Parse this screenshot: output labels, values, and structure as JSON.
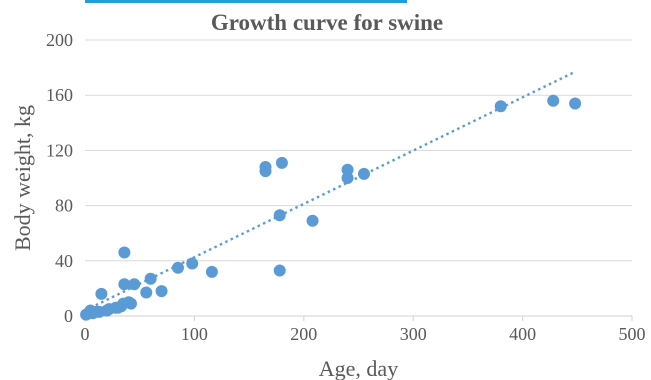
{
  "colors": {
    "series": "#5b9bd5",
    "text": "#595959",
    "grid": "#d9d9d9",
    "top_bar": "#1fa0d8"
  },
  "chart_data": {
    "type": "scatter",
    "title": "Growth curve for swine",
    "xlabel": "Age, day",
    "ylabel": "Body weight, kg",
    "xlim": [
      0,
      500
    ],
    "ylim": [
      0,
      200
    ],
    "xticks": [
      0,
      100,
      200,
      300,
      400,
      500
    ],
    "yticks": [
      0,
      40,
      80,
      120,
      160,
      200
    ],
    "grid": "horizontal",
    "legend": "none",
    "series": [
      {
        "points": [
          [
            1,
            1
          ],
          [
            3,
            2
          ],
          [
            5,
            4
          ],
          [
            7,
            2
          ],
          [
            10,
            3
          ],
          [
            13,
            3
          ],
          [
            15,
            16
          ],
          [
            20,
            4
          ],
          [
            22,
            5
          ],
          [
            28,
            6
          ],
          [
            30,
            6
          ],
          [
            33,
            7
          ],
          [
            35,
            9
          ],
          [
            36,
            46
          ],
          [
            36,
            23
          ],
          [
            40,
            10
          ],
          [
            42,
            9
          ],
          [
            45,
            23
          ],
          [
            56,
            17
          ],
          [
            60,
            27
          ],
          [
            70,
            18
          ],
          [
            85,
            35
          ],
          [
            98,
            38
          ],
          [
            116,
            32
          ],
          [
            165,
            108
          ],
          [
            165,
            105
          ],
          [
            178,
            73
          ],
          [
            178,
            33
          ],
          [
            180,
            111
          ],
          [
            208,
            69
          ],
          [
            240,
            106
          ],
          [
            240,
            100
          ],
          [
            255,
            103
          ],
          [
            380,
            152
          ],
          [
            428,
            156
          ],
          [
            448,
            154
          ]
        ],
        "trendline": {
          "type": "linear",
          "x": [
            0,
            448
          ],
          "y": [
            4,
            177
          ]
        }
      }
    ]
  }
}
